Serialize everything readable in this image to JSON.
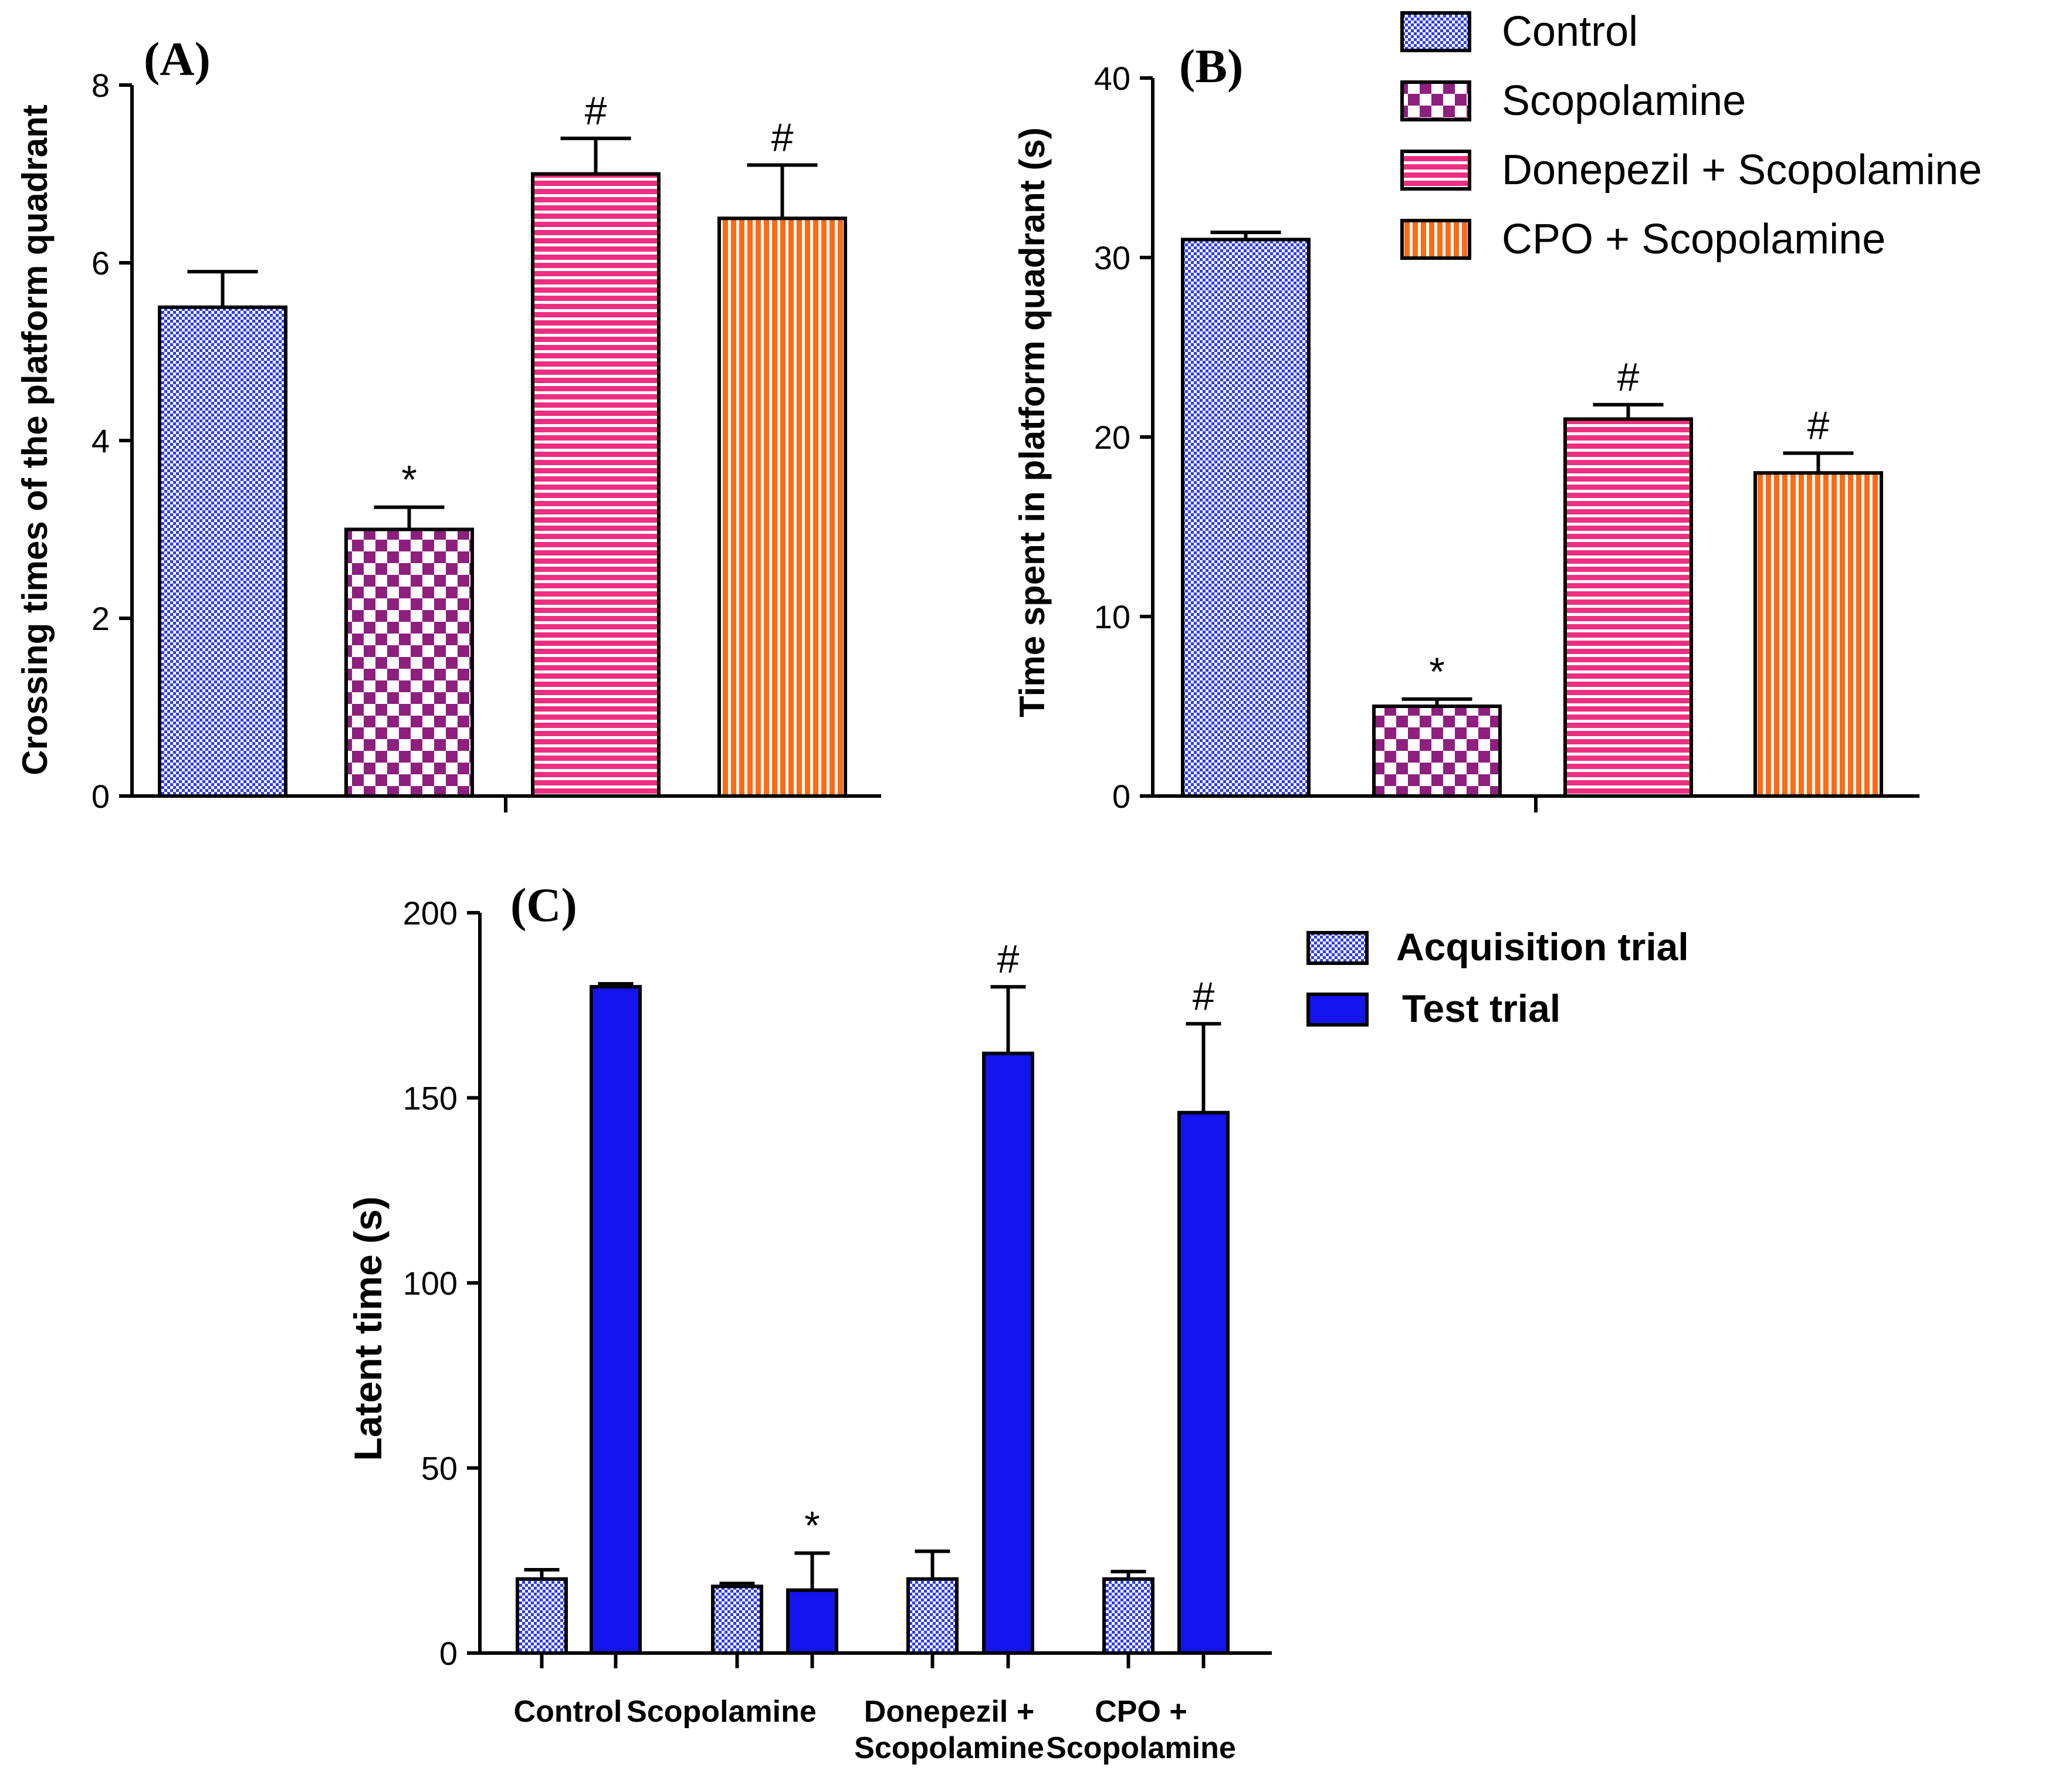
{
  "colors": {
    "control": "#2f3cf0",
    "scopolamine": "#8e1f7e",
    "donepezil": "#ee2f80",
    "cpo": "#ff6a14",
    "test_trial": "#1414ee",
    "axis": "#000000"
  },
  "legend_top": {
    "items": [
      {
        "label": "Control",
        "pattern": "pat-control"
      },
      {
        "label": "Scopolamine",
        "pattern": "pat-scop"
      },
      {
        "label": "Donepezil + Scopolamine",
        "pattern": "pat-donep"
      },
      {
        "label": "CPO + Scopolamine",
        "pattern": "pat-cpo"
      }
    ]
  },
  "legend_c": {
    "items": [
      {
        "label": "Acquisition trial",
        "pattern": "pat-control"
      },
      {
        "label": "Test trial",
        "pattern": "solid"
      }
    ]
  },
  "chart_data": [
    {
      "panel": "(A)",
      "type": "bar",
      "title": "",
      "xlabel": "",
      "ylabel": "Crossing times of the platform quadrant",
      "ylim": [
        0,
        8
      ],
      "yticks": [
        0,
        2,
        4,
        6,
        8
      ],
      "categories": [
        "Control",
        "Scopolamine",
        "Donepezil + Scopolamine",
        "CPO + Scopolamine"
      ],
      "values": [
        5.5,
        3.0,
        7.0,
        6.5
      ],
      "errors": [
        0.4,
        0.25,
        0.4,
        0.6
      ],
      "annotations": [
        "",
        "*",
        "#",
        "#"
      ]
    },
    {
      "panel": "(B)",
      "type": "bar",
      "title": "",
      "xlabel": "",
      "ylabel": "Time spent in platform quadrant (s)",
      "ylim": [
        0,
        40
      ],
      "yticks": [
        0,
        10,
        20,
        30,
        40
      ],
      "categories": [
        "Control",
        "Scopolamine",
        "Donepezil + Scopolamine",
        "CPO + Scopolamine"
      ],
      "values": [
        31,
        5,
        21,
        18
      ],
      "errors": [
        0.4,
        0.4,
        0.8,
        1.1
      ],
      "annotations": [
        "",
        "*",
        "#",
        "#"
      ]
    },
    {
      "panel": "(C)",
      "type": "bar",
      "title": "",
      "xlabel": "",
      "ylabel": "Latent time (s)",
      "ylim": [
        0,
        200
      ],
      "yticks": [
        0,
        50,
        100,
        150,
        200
      ],
      "categories": [
        "Control",
        "Scopolamine",
        "Donepezil +\nScopolamine",
        "CPO +\nScopolamine"
      ],
      "series": [
        {
          "name": "Acquisition trial",
          "values": [
            20,
            18,
            20,
            20
          ],
          "errors": [
            2.5,
            0.8,
            7.5,
            2
          ],
          "annotations": [
            "",
            "",
            "",
            ""
          ]
        },
        {
          "name": "Test trial",
          "values": [
            180,
            17,
            162,
            146
          ],
          "errors": [
            0.8,
            10,
            18,
            24
          ],
          "annotations": [
            "",
            "*",
            "#",
            "#"
          ]
        }
      ]
    }
  ]
}
